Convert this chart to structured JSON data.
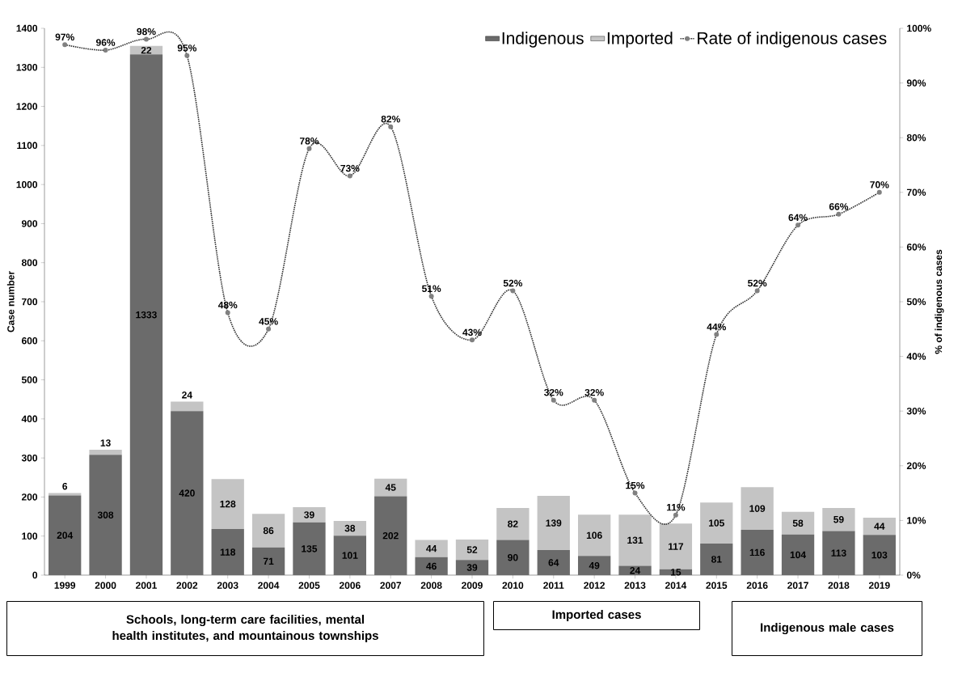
{
  "chart_data": {
    "type": "bar",
    "stacked": true,
    "ylabel": "Case number",
    "y2label": "% of indigenous cases",
    "categories": [
      "1999",
      "2000",
      "2001",
      "2002",
      "2003",
      "2004",
      "2005",
      "2006",
      "2007",
      "2008",
      "2009",
      "2010",
      "2011",
      "2012",
      "2013",
      "2014",
      "2015",
      "2016",
      "2017",
      "2018",
      "2019"
    ],
    "series": [
      {
        "name": "Indigenous",
        "type": "bar",
        "color": "#6b6b6b",
        "values": [
          204,
          308,
          1333,
          420,
          118,
          71,
          135,
          101,
          202,
          46,
          39,
          90,
          64,
          49,
          24,
          15,
          81,
          116,
          104,
          113,
          103
        ],
        "value_labels": [
          "204",
          "308",
          "1333",
          "420",
          "118",
          "71",
          "135",
          "101",
          "202",
          "46",
          "39",
          "90",
          "64",
          "49",
          "24",
          "15",
          "81",
          "116",
          "104",
          "113",
          "103"
        ]
      },
      {
        "name": "Imported",
        "type": "bar",
        "color": "#c4c4c4",
        "values": [
          6,
          13,
          22,
          24,
          128,
          86,
          39,
          38,
          45,
          44,
          52,
          82,
          139,
          106,
          131,
          117,
          105,
          109,
          58,
          59,
          44
        ],
        "value_labels": [
          "6",
          "13",
          "22",
          "24",
          "128",
          "86",
          "39",
          "38",
          "45",
          "44",
          "52",
          "82",
          "139",
          "106",
          "131",
          "117",
          "105",
          "109",
          "58",
          "59",
          "44"
        ]
      },
      {
        "name": "Rate of indigenous cases",
        "type": "line",
        "axis": "y2",
        "color": "#333333",
        "marker": "circle",
        "line_style": "dotted",
        "values": [
          97,
          96,
          98,
          95,
          48,
          45,
          78,
          73,
          82,
          51,
          43,
          52,
          32,
          32,
          15,
          11,
          44,
          52,
          64,
          66,
          70
        ],
        "value_labels": [
          "97%",
          "96%",
          "98%",
          "95%",
          "48%",
          "45%",
          "78%",
          "73%",
          "82%",
          "51%",
          "43%",
          "52%",
          "32%",
          "32%",
          "15%",
          "11%",
          "44%",
          "52%",
          "64%",
          "66%",
          "70%"
        ]
      }
    ],
    "ylim": [
      0,
      1400
    ],
    "yticks": [
      0,
      100,
      200,
      300,
      400,
      500,
      600,
      700,
      800,
      900,
      1000,
      1100,
      1200,
      1300,
      1400
    ],
    "y2lim": [
      0,
      100
    ],
    "y2ticks": [
      {
        "value": 0,
        "label": "0%"
      },
      {
        "value": 10,
        "label": "10%"
      },
      {
        "value": 20,
        "label": "20%"
      },
      {
        "value": 30,
        "label": "30%"
      },
      {
        "value": 40,
        "label": "40%"
      },
      {
        "value": 50,
        "label": "50%"
      },
      {
        "value": 60,
        "label": "60%"
      },
      {
        "value": 70,
        "label": "70%"
      },
      {
        "value": 80,
        "label": "80%"
      },
      {
        "value": 90,
        "label": "90%"
      },
      {
        "value": 100,
        "label": "100%"
      }
    ],
    "legend": "top right",
    "annotations": [
      "Schools, long-term care facilities, mental health institutes, and mountainous townships",
      "Imported cases",
      "Indigenous male cases"
    ]
  }
}
